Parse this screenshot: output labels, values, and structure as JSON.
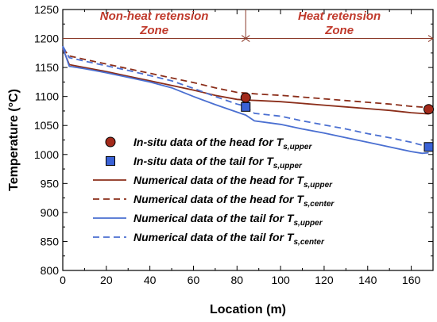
{
  "chart_data": {
    "type": "line",
    "xlabel": "Location (m)",
    "ylabel": "Temperature (°C)",
    "xlim": [
      0,
      170
    ],
    "ylim": [
      800,
      1250
    ],
    "xticks": [
      0,
      20,
      40,
      60,
      80,
      100,
      120,
      140,
      160
    ],
    "yticks": [
      800,
      850,
      900,
      950,
      1000,
      1050,
      1100,
      1150,
      1200,
      1250
    ],
    "grid": false,
    "legend_position": "center-left",
    "zones": [
      {
        "label_line1": "Non-heat retension",
        "label_line2": "Zone",
        "x_range": [
          0,
          84
        ]
      },
      {
        "label_line1": "Heat retension",
        "label_line2": "Zone",
        "x_range": [
          84,
          170
        ]
      }
    ],
    "zone_line_y": 1200,
    "zone_divider_x": 84,
    "colors": {
      "head": "#8b2e1a",
      "head_marker": "#a32a1a",
      "tail": "#4a6fd1",
      "tail_marker": "#3a62d6",
      "zone_label": "#c0392b",
      "zone_line": "#8b3a2a"
    },
    "series": [
      {
        "id": "insitu-head",
        "kind": "marker",
        "marker": "circle",
        "legend_main": "In-situ data of the head for T",
        "legend_sub": "s,upper",
        "x": [
          84,
          168
        ],
        "y": [
          1098,
          1078
        ]
      },
      {
        "id": "insitu-tail",
        "kind": "marker",
        "marker": "square",
        "legend_main": "In-situ data of the tail for T",
        "legend_sub": "s,upper",
        "x": [
          84,
          168
        ],
        "y": [
          1082,
          1013
        ]
      },
      {
        "id": "num-head-upper",
        "kind": "line",
        "dash": "solid",
        "legend_main": "Numerical data of the head for T",
        "legend_sub": "s,upper",
        "x": [
          0,
          3,
          10,
          20,
          30,
          40,
          50,
          60,
          70,
          80,
          84,
          90,
          100,
          110,
          120,
          130,
          140,
          150,
          160,
          168
        ],
        "y": [
          1183,
          1155,
          1150,
          1143,
          1135,
          1127,
          1119,
          1111,
          1102,
          1095,
          1094,
          1093,
          1091,
          1088,
          1085,
          1082,
          1079,
          1076,
          1072,
          1070
        ]
      },
      {
        "id": "num-head-center",
        "kind": "line",
        "dash": "dashed",
        "legend_main": "Numerical data of the head for T",
        "legend_sub": "s,center",
        "x": [
          0,
          3,
          10,
          20,
          30,
          40,
          50,
          60,
          70,
          80,
          84,
          90,
          100,
          110,
          120,
          130,
          140,
          150,
          160,
          168
        ],
        "y": [
          1183,
          1170,
          1164,
          1156,
          1148,
          1140,
          1132,
          1124,
          1115,
          1107,
          1106,
          1104,
          1102,
          1099,
          1096,
          1093,
          1090,
          1087,
          1083,
          1081
        ]
      },
      {
        "id": "num-tail-upper",
        "kind": "line",
        "dash": "solid",
        "legend_main": "Numerical data of the tail for T",
        "legend_sub": "s,upper",
        "x": [
          0,
          3,
          10,
          20,
          30,
          40,
          50,
          60,
          70,
          80,
          84,
          88,
          100,
          110,
          120,
          130,
          140,
          150,
          160,
          165,
          168
        ],
        "y": [
          1185,
          1152,
          1148,
          1141,
          1133,
          1125,
          1115,
          1100,
          1086,
          1073,
          1068,
          1058,
          1052,
          1044,
          1037,
          1029,
          1021,
          1013,
          1005,
          1002,
          1003
        ]
      },
      {
        "id": "num-tail-center",
        "kind": "line",
        "dash": "dashed",
        "legend_main": "Numerical data of the tail for T",
        "legend_sub": "s,center",
        "x": [
          0,
          3,
          10,
          20,
          30,
          40,
          50,
          60,
          70,
          80,
          84,
          88,
          100,
          110,
          120,
          130,
          140,
          150,
          160,
          165,
          168
        ],
        "y": [
          1187,
          1167,
          1161,
          1153,
          1145,
          1136,
          1127,
          1114,
          1100,
          1087,
          1083,
          1071,
          1066,
          1058,
          1051,
          1044,
          1036,
          1029,
          1021,
          1016,
          1013
        ]
      }
    ]
  }
}
